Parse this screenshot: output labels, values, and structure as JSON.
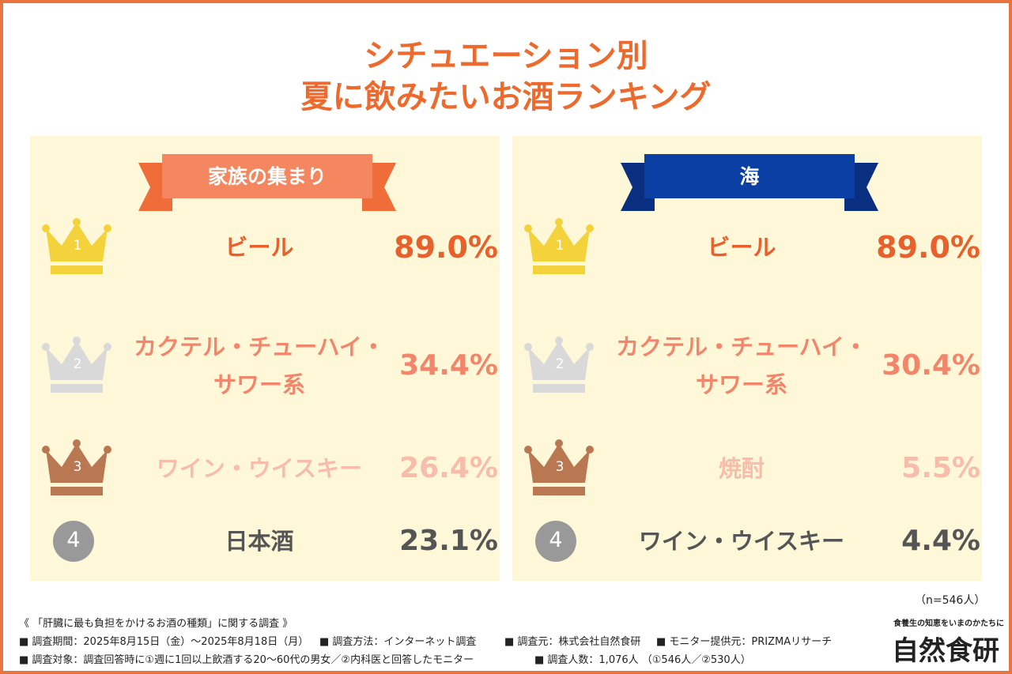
{
  "title": [
    "シチュエーション別",
    "夏に飲みたいお酒ランキング"
  ],
  "panels": [
    {
      "heading": "家族の集まり",
      "ranks": [
        {
          "rank": "1",
          "item": [
            "ビール"
          ],
          "percent": "89.0%"
        },
        {
          "rank": "2",
          "item": [
            "カクテル・チューハイ・",
            "サワー系"
          ],
          "percent": "34.4%"
        },
        {
          "rank": "3",
          "item": [
            "ワイン・ウイスキー"
          ],
          "percent": "26.4%"
        },
        {
          "rank": "4",
          "item": [
            "日本酒"
          ],
          "percent": "23.1%"
        }
      ]
    },
    {
      "heading": "海",
      "ranks": [
        {
          "rank": "1",
          "item": [
            "ビール"
          ],
          "percent": "89.0%"
        },
        {
          "rank": "2",
          "item": [
            "カクテル・チューハイ・",
            "サワー系"
          ],
          "percent": "30.4%"
        },
        {
          "rank": "3",
          "item": [
            "焼酎"
          ],
          "percent": "5.5%"
        },
        {
          "rank": "4",
          "item": [
            "ワイン・ウイスキー"
          ],
          "percent": "4.4%"
        }
      ]
    }
  ],
  "sample": "（n=546人）",
  "footer": {
    "survey": "《 「肝臓に最も負担をかけるお酒の種類」に関する調査 》",
    "line1": [
      "■ 調査期間：2025年8月15日（金）～2025年8月18日（月）",
      "■ 調査方法：インターネット調査",
      "■ 調査元：株式会社自然食研",
      "■ モニター提供元：PRIZMAリサーチ"
    ],
    "line2": [
      "■ 調査対象：調査回答時に①週に1回以上飲酒する20～60代の男女／②内科医と回答したモニター",
      "■ 調査人数：1,076人 （①546人／②530人）"
    ]
  },
  "logo": {
    "tagline": "食養生の知恵をいまのかたちに",
    "name": "自然食研"
  }
}
